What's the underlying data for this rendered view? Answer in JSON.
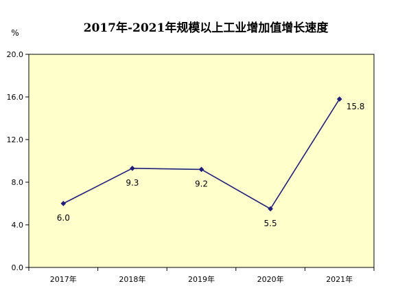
{
  "chart_data": {
    "type": "line",
    "title": "2017年-2021年规模以上工业增加值增长速度",
    "ylabel": "%",
    "xlabel": "",
    "categories": [
      "2017年",
      "2018年",
      "2019年",
      "2020年",
      "2021年"
    ],
    "series": [
      {
        "values": [
          6.0,
          9.3,
          9.2,
          5.5,
          15.8
        ],
        "value_labels": [
          "6.0",
          "9.3",
          "9.2",
          "5.5",
          "15.8"
        ]
      }
    ],
    "y_ticks": [
      0,
      4,
      8,
      12,
      16,
      20
    ],
    "y_tick_labels": [
      "0.0",
      "4.0",
      "8.0",
      "12.0",
      "16.0",
      "20.0"
    ],
    "ylim": [
      0,
      20
    ],
    "grid": false,
    "legend": "none",
    "colors": {
      "plot_background": "#FFFFCC",
      "line": "#1F1F7A",
      "marker": "#1F1F7A",
      "axis": "#000000"
    }
  }
}
